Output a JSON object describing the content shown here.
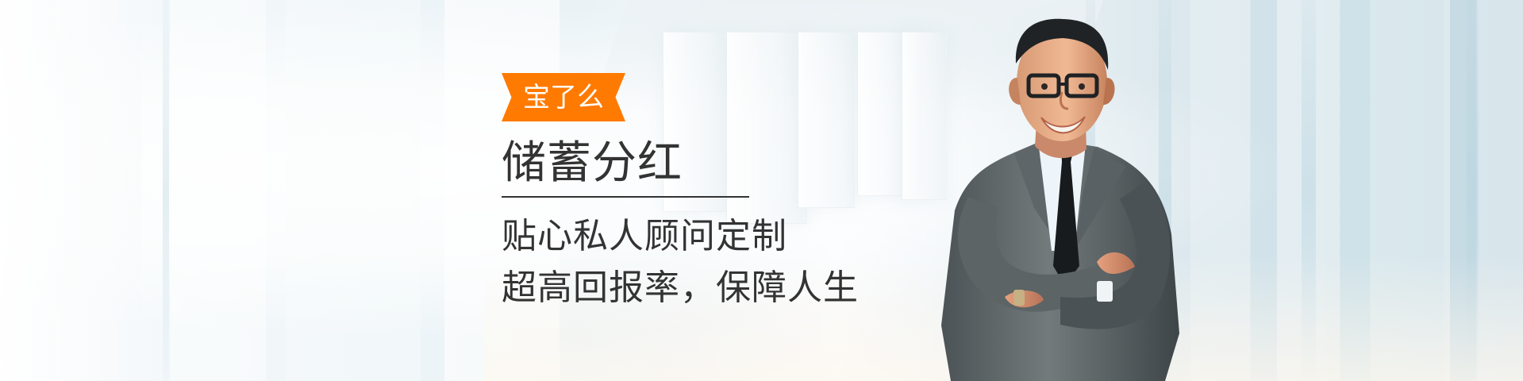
{
  "banner": {
    "brand_label": "宝了么",
    "headline": "储蓄分红",
    "sublines": [
      "贴心私人顾问定制",
      "超高回报率，保障人生"
    ]
  },
  "colors": {
    "brand_orange": "#ff7a00",
    "text_dark": "#333333",
    "background_light": "#eef4f8"
  }
}
